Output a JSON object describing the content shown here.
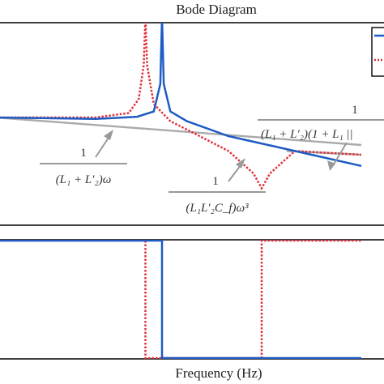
{
  "chart_data": [
    {
      "type": "line",
      "panel": "magnitude",
      "title": "Bode Diagram",
      "xlabel": "",
      "ylabel": "",
      "xscale": "log",
      "grid": false,
      "legend": "top-right (partially cropped)",
      "series": [
        {
          "color": "#1f5bc4",
          "style": "solid",
          "x": [
            0.0,
            0.3,
            0.6,
            0.85,
            0.95,
            0.99,
            1.0,
            1.01,
            1.05,
            1.15,
            1.4,
            1.8,
            2.2
          ],
          "y": [
            0.0,
            -0.01,
            -0.02,
            0.01,
            0.08,
            0.45,
            1.35,
            0.45,
            0.08,
            -0.05,
            -0.25,
            -0.45,
            -0.65
          ]
        },
        {
          "color": "#e0303a",
          "style": "dotted",
          "x": [
            0.0,
            0.3,
            0.6,
            0.8,
            0.86,
            0.89,
            0.9,
            0.91,
            0.95,
            1.05,
            1.2,
            1.4,
            1.55,
            1.6,
            1.65,
            1.8,
            2.2
          ],
          "y": [
            0.0,
            0.0,
            0.0,
            0.06,
            0.25,
            0.7,
            1.35,
            0.7,
            0.18,
            -0.05,
            -0.22,
            -0.45,
            -0.75,
            -0.95,
            -0.75,
            -0.45,
            -0.5
          ]
        },
        {
          "color": "#aaaaaa",
          "style": "solid",
          "x": [
            0.0,
            2.2
          ],
          "y": [
            0.0,
            -0.37
          ]
        },
        {
          "color": "#aaaaaa",
          "style": "solid",
          "x": [
            1.75,
            2.2
          ],
          "y": [
            -0.45,
            -0.5
          ]
        }
      ],
      "annotations": [
        {
          "num": "1",
          "den": "(L₁ + L′₂)ω"
        },
        {
          "num": "1",
          "den": "(L₁L′₂C_f)ω³"
        },
        {
          "num": "1",
          "den": "(L₁ + L′₂)(1 + L₁ ||"
        }
      ]
    },
    {
      "type": "line",
      "panel": "phase",
      "xlabel": "Frequency (Hz)",
      "ylabel": "",
      "xscale": "log",
      "grid": false,
      "series": [
        {
          "color": "#1f5bc4",
          "style": "solid",
          "x": [
            0.0,
            1.0,
            1.0,
            2.2
          ],
          "y": [
            90,
            90,
            -90,
            -90
          ]
        },
        {
          "color": "#e0303a",
          "style": "dotted",
          "x": [
            0.0,
            0.9,
            0.9,
            1.6,
            1.6,
            2.2
          ],
          "y": [
            90,
            90,
            -90,
            -90,
            90,
            90
          ]
        }
      ]
    }
  ]
}
